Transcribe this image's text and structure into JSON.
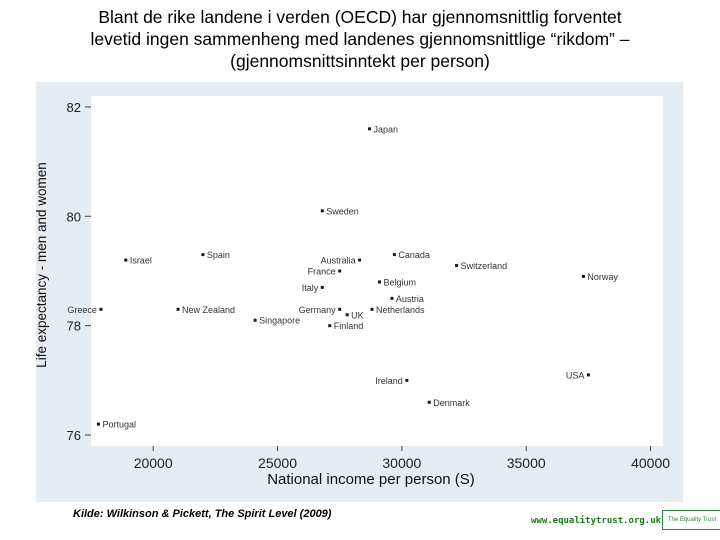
{
  "title_lines": [
    "Blant de rike landene i verden (OECD) har gjennomsnittlig forventet",
    "levetid ingen sammenheng med landenes gjennomsnittlige “rikdom” –",
    "(gjennomsnittsinntekt per person)"
  ],
  "source": "Kilde: Wilkinson & Pickett, The Spirit Level (2009)",
  "website": "www.equalitytrust.org.uk",
  "logo_text": "The Equality Trust",
  "colors": {
    "panel": "#e5ecf2",
    "plot": "#ffffff",
    "marker": "#1a1a1a",
    "logo": "#2e8b3a"
  },
  "chart_data": {
    "type": "scatter",
    "xlabel": "National income per person (S)",
    "ylabel": "Life expectancy - men and women",
    "xlim": [
      17500,
      40500
    ],
    "ylim": [
      75.8,
      82.2
    ],
    "xticks": [
      "20000",
      "25000",
      "30000",
      "35000",
      "40000"
    ],
    "yticks": [
      "76",
      "78",
      "80",
      "82"
    ],
    "grid": false,
    "points": [
      {
        "label": "Japan",
        "x": 28700,
        "y": 81.6,
        "label_side": "right"
      },
      {
        "label": "Sweden",
        "x": 26800,
        "y": 80.1,
        "label_side": "right"
      },
      {
        "label": "Israel",
        "x": 18900,
        "y": 79.2,
        "label_side": "right"
      },
      {
        "label": "Spain",
        "x": 22000,
        "y": 79.3,
        "label_side": "right"
      },
      {
        "label": "Australia",
        "x": 28300,
        "y": 79.2,
        "label_side": "left"
      },
      {
        "label": "Canada",
        "x": 29700,
        "y": 79.3,
        "label_side": "right"
      },
      {
        "label": "France",
        "x": 27500,
        "y": 79.0,
        "label_side": "left"
      },
      {
        "label": "Switzerland",
        "x": 32200,
        "y": 79.1,
        "label_side": "right"
      },
      {
        "label": "Norway",
        "x": 37300,
        "y": 78.9,
        "label_side": "right"
      },
      {
        "label": "Belgium",
        "x": 29100,
        "y": 78.8,
        "label_side": "right"
      },
      {
        "label": "Italy",
        "x": 26800,
        "y": 78.7,
        "label_side": "left"
      },
      {
        "label": "Austria",
        "x": 29600,
        "y": 78.5,
        "label_side": "right"
      },
      {
        "label": "Greece",
        "x": 17900,
        "y": 78.3,
        "label_side": "left"
      },
      {
        "label": "New Zealand",
        "x": 21000,
        "y": 78.3,
        "label_side": "right"
      },
      {
        "label": "Germany",
        "x": 27500,
        "y": 78.3,
        "label_side": "left"
      },
      {
        "label": "Netherlands",
        "x": 28800,
        "y": 78.3,
        "label_side": "right"
      },
      {
        "label": "UK",
        "x": 27800,
        "y": 78.2,
        "label_side": "right"
      },
      {
        "label": "Singapore",
        "x": 24100,
        "y": 78.1,
        "label_side": "right"
      },
      {
        "label": "Finland",
        "x": 27100,
        "y": 78.0,
        "label_side": "right"
      },
      {
        "label": "USA",
        "x": 37500,
        "y": 77.1,
        "label_side": "left"
      },
      {
        "label": "Ireland",
        "x": 30200,
        "y": 77.0,
        "label_side": "left"
      },
      {
        "label": "Denmark",
        "x": 31100,
        "y": 76.6,
        "label_side": "right"
      },
      {
        "label": "Portugal",
        "x": 17800,
        "y": 76.2,
        "label_side": "right"
      }
    ]
  }
}
